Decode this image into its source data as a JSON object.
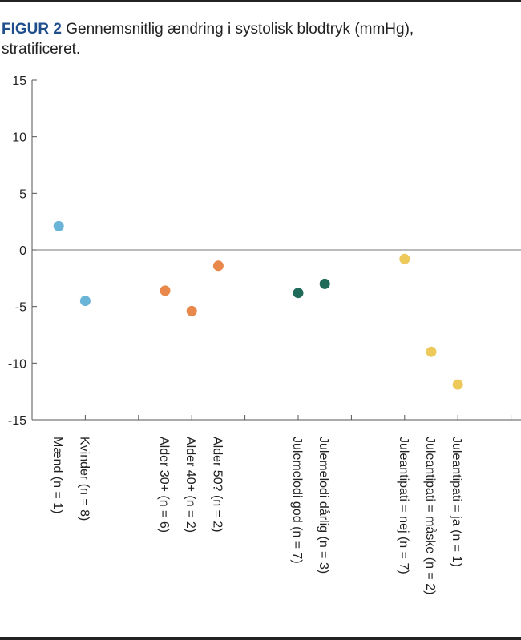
{
  "chart_data": {
    "type": "scatter",
    "title_label": "FIGUR 2",
    "title": "Gennemsnitlig ændring i systolisk blodtryk (mmHg), stratificeret.",
    "xlabel": "",
    "ylabel": "",
    "ylim": [
      -15,
      15
    ],
    "yticks": [
      15,
      10,
      5,
      0,
      -5,
      -10,
      -15
    ],
    "grid": false,
    "zero_line": true,
    "categories": [
      "Mænd (n = 1)",
      "Kvinder (n = 8)",
      "Alder 30+ (n = 6)",
      "Alder 40+ (n = 2)",
      "Alder 50? (n = 2)",
      "Julemelodi god (n = 7)",
      "Julemelodi dårlig (n = 3)",
      "Juleantipati = nej (n = 7)",
      "Juleantipati = måske (n = 2)",
      "Juleantipati = ja (n = 1)"
    ],
    "values": [
      2.1,
      -4.5,
      -3.6,
      -5.4,
      -1.4,
      -3.8,
      -3.0,
      -0.8,
      -9.0,
      -11.9
    ],
    "groups": [
      "sex",
      "sex",
      "age",
      "age",
      "age",
      "melody",
      "melody",
      "antipathy",
      "antipathy",
      "antipathy"
    ],
    "colors": {
      "sex": "#6ab4d8",
      "age": "#e8884a",
      "melody": "#1f6b5a",
      "antipathy": "#ecc95a"
    }
  }
}
